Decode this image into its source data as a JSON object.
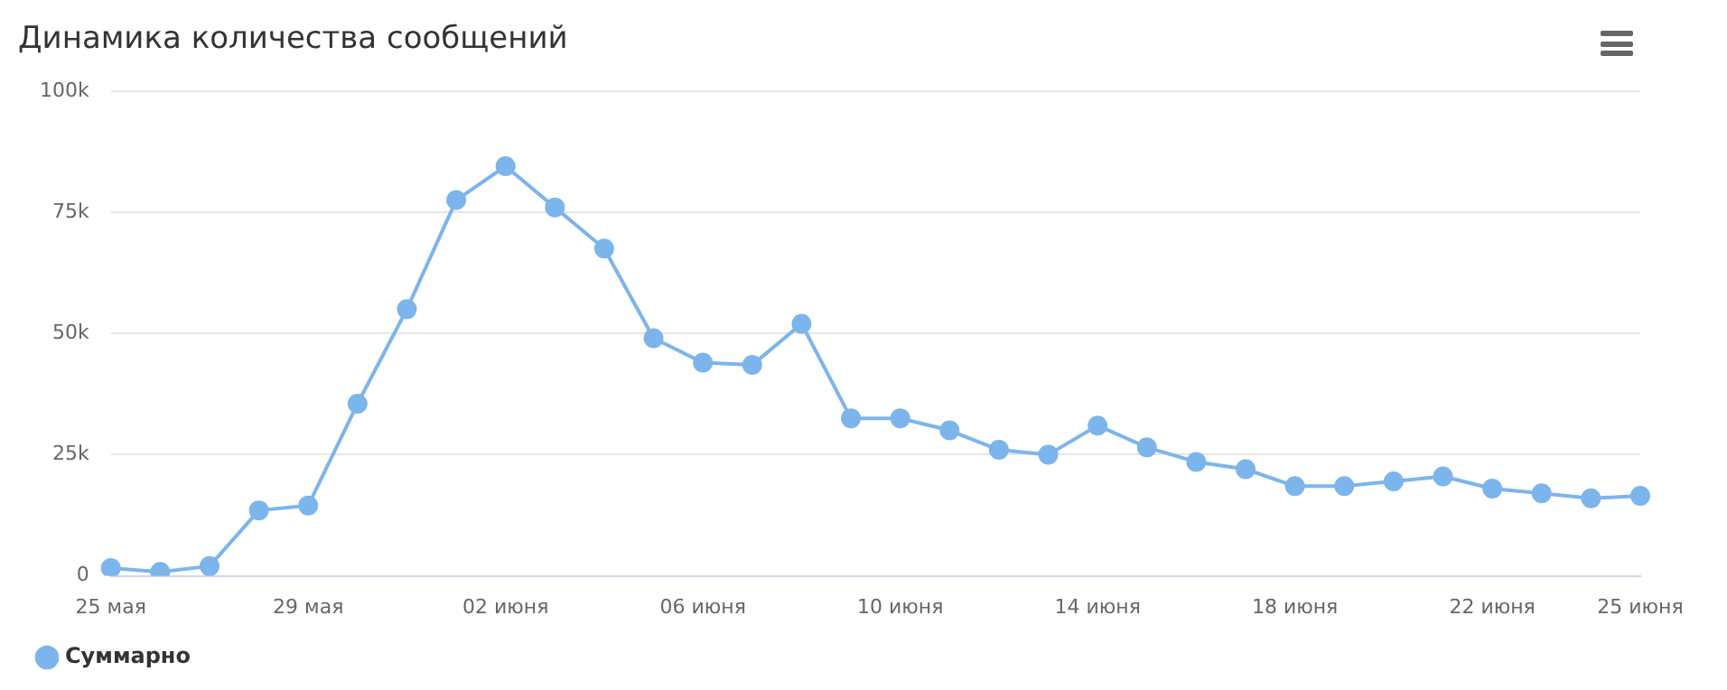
{
  "chart_data": {
    "type": "line",
    "title": "Динамика количества сообщений",
    "categories": [
      "25 мая",
      null,
      null,
      null,
      "29 мая",
      null,
      null,
      null,
      "02 июня",
      null,
      null,
      null,
      "06 июня",
      null,
      null,
      null,
      "10 июня",
      null,
      null,
      null,
      "14 июня",
      null,
      null,
      null,
      "18 июня",
      null,
      null,
      null,
      "22 июня",
      null,
      null,
      "25 июня"
    ],
    "series": [
      {
        "name": "Суммарно",
        "color": "#7cb5ec",
        "values": [
          1600,
          800,
          2000,
          13500,
          14500,
          35500,
          55000,
          77500,
          84500,
          76000,
          67500,
          49000,
          44000,
          43500,
          52000,
          32500,
          32500,
          30000,
          26000,
          25000,
          31000,
          26500,
          23500,
          22000,
          18500,
          18500,
          19500,
          20500,
          18000,
          17000,
          16000,
          16500
        ]
      }
    ],
    "ylim": [
      0,
      100000
    ],
    "yticks": [
      {
        "value": 0,
        "label": "0"
      },
      {
        "value": 25000,
        "label": "25k"
      },
      {
        "value": 50000,
        "label": "50k"
      },
      {
        "value": 75000,
        "label": "75k"
      },
      {
        "value": 100000,
        "label": "100k"
      }
    ],
    "grid": "y",
    "legend": "bottom left",
    "marker": "circle",
    "line_style": "solid"
  }
}
